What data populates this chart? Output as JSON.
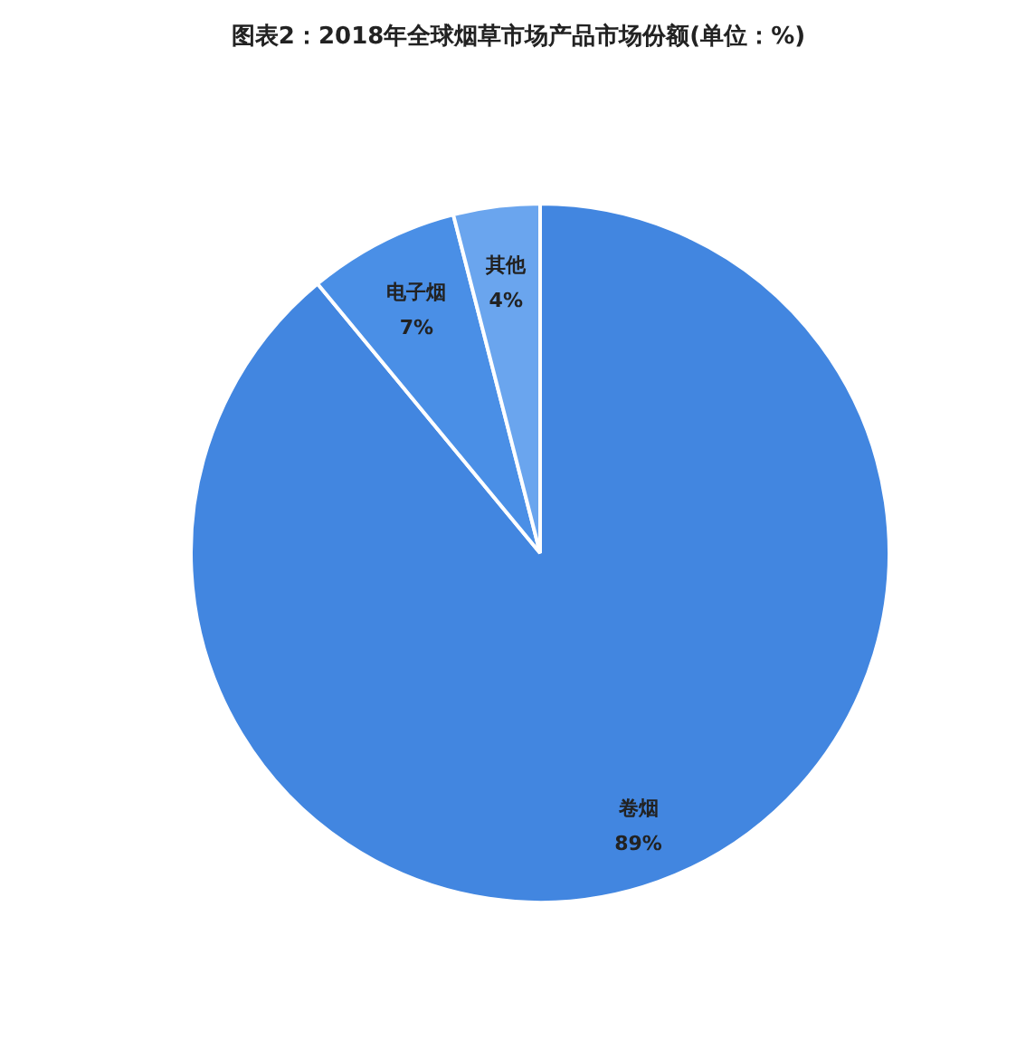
{
  "chart_data": {
    "type": "pie",
    "title": "图表2：2018年全球烟草市场产品市场份额(单位：%)",
    "categories": [
      "卷烟",
      "电子烟",
      "其他"
    ],
    "values": [
      89,
      7,
      4
    ],
    "colors": [
      "#4286e0",
      "#4a8fe6",
      "#6aa5ee"
    ],
    "value_labels": [
      "89%",
      "7%",
      "4%"
    ]
  }
}
